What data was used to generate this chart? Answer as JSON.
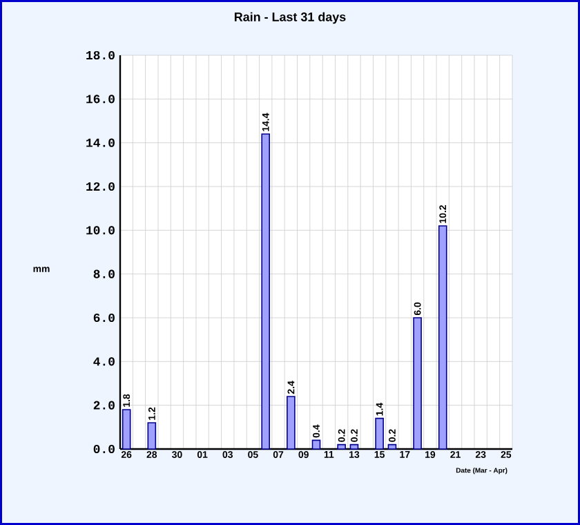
{
  "chart_data": {
    "type": "bar",
    "title": "Rain - Last 31 days",
    "xlabel": "Date (Mar - Apr)",
    "ylabel": "mm",
    "categories": [
      "26",
      null,
      "28",
      null,
      "30",
      null,
      "01",
      null,
      "03",
      null,
      "05",
      null,
      "07",
      null,
      "09",
      null,
      "11",
      null,
      "13",
      null,
      "15",
      null,
      "17",
      null,
      "19",
      null,
      "21",
      null,
      "23",
      null,
      "25"
    ],
    "values": [
      1.8,
      null,
      1.2,
      null,
      null,
      null,
      null,
      null,
      null,
      null,
      null,
      14.4,
      null,
      2.4,
      null,
      0.4,
      null,
      0.2,
      0.2,
      null,
      1.4,
      0.2,
      null,
      6.0,
      null,
      10.2,
      null,
      null,
      null,
      null,
      null
    ],
    "value_labels": [
      "1.8",
      null,
      "1.2",
      null,
      null,
      null,
      null,
      null,
      null,
      null,
      null,
      "14.4",
      null,
      "2.4",
      null,
      "0.4",
      null,
      "0.2",
      "0.2",
      null,
      "1.4",
      "0.2",
      null,
      "6.0",
      null,
      "10.2",
      null,
      null,
      null,
      null,
      null
    ],
    "color": "#a0a0ff",
    "ylim": [
      0,
      18
    ],
    "yticks": [
      {
        "value": 0,
        "label": "0.0"
      },
      {
        "value": 2,
        "label": "2.0"
      },
      {
        "value": 4,
        "label": "4.0"
      },
      {
        "value": 6,
        "label": "6.0"
      },
      {
        "value": 8,
        "label": "8.0"
      },
      {
        "value": 10,
        "label": "10.0"
      },
      {
        "value": 12,
        "label": "12.0"
      },
      {
        "value": 14,
        "label": "14.0"
      },
      {
        "value": 16,
        "label": "16.0"
      },
      {
        "value": 18,
        "label": "18.0"
      }
    ],
    "grid": true
  }
}
